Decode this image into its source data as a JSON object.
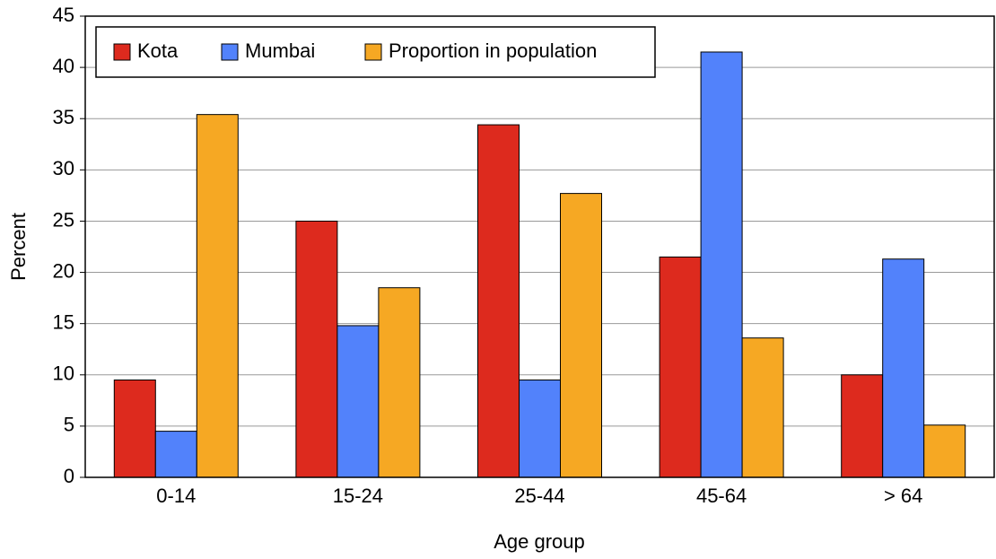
{
  "chart_data": {
    "type": "bar",
    "x_label": "Age group",
    "y_label": "Percent",
    "categories": [
      "0-14",
      "15-24",
      "25-44",
      "45-64",
      "> 64"
    ],
    "series": [
      {
        "name": "Kota",
        "color": "#dd2a1e",
        "values": [
          9.5,
          25,
          34.4,
          21.5,
          10
        ]
      },
      {
        "name": "Mumbai",
        "color": "#5282fb",
        "values": [
          4.5,
          14.8,
          9.5,
          41.5,
          21.3
        ]
      },
      {
        "name": "Proportion in population",
        "color": "#f6a823",
        "values": [
          35.4,
          18.5,
          27.7,
          13.6,
          5.1
        ]
      }
    ],
    "ylim": [
      0,
      45
    ],
    "yticks": [
      0,
      5,
      10,
      15,
      20,
      25,
      30,
      35,
      40,
      45
    ],
    "grid": true,
    "legend": "top-left"
  }
}
